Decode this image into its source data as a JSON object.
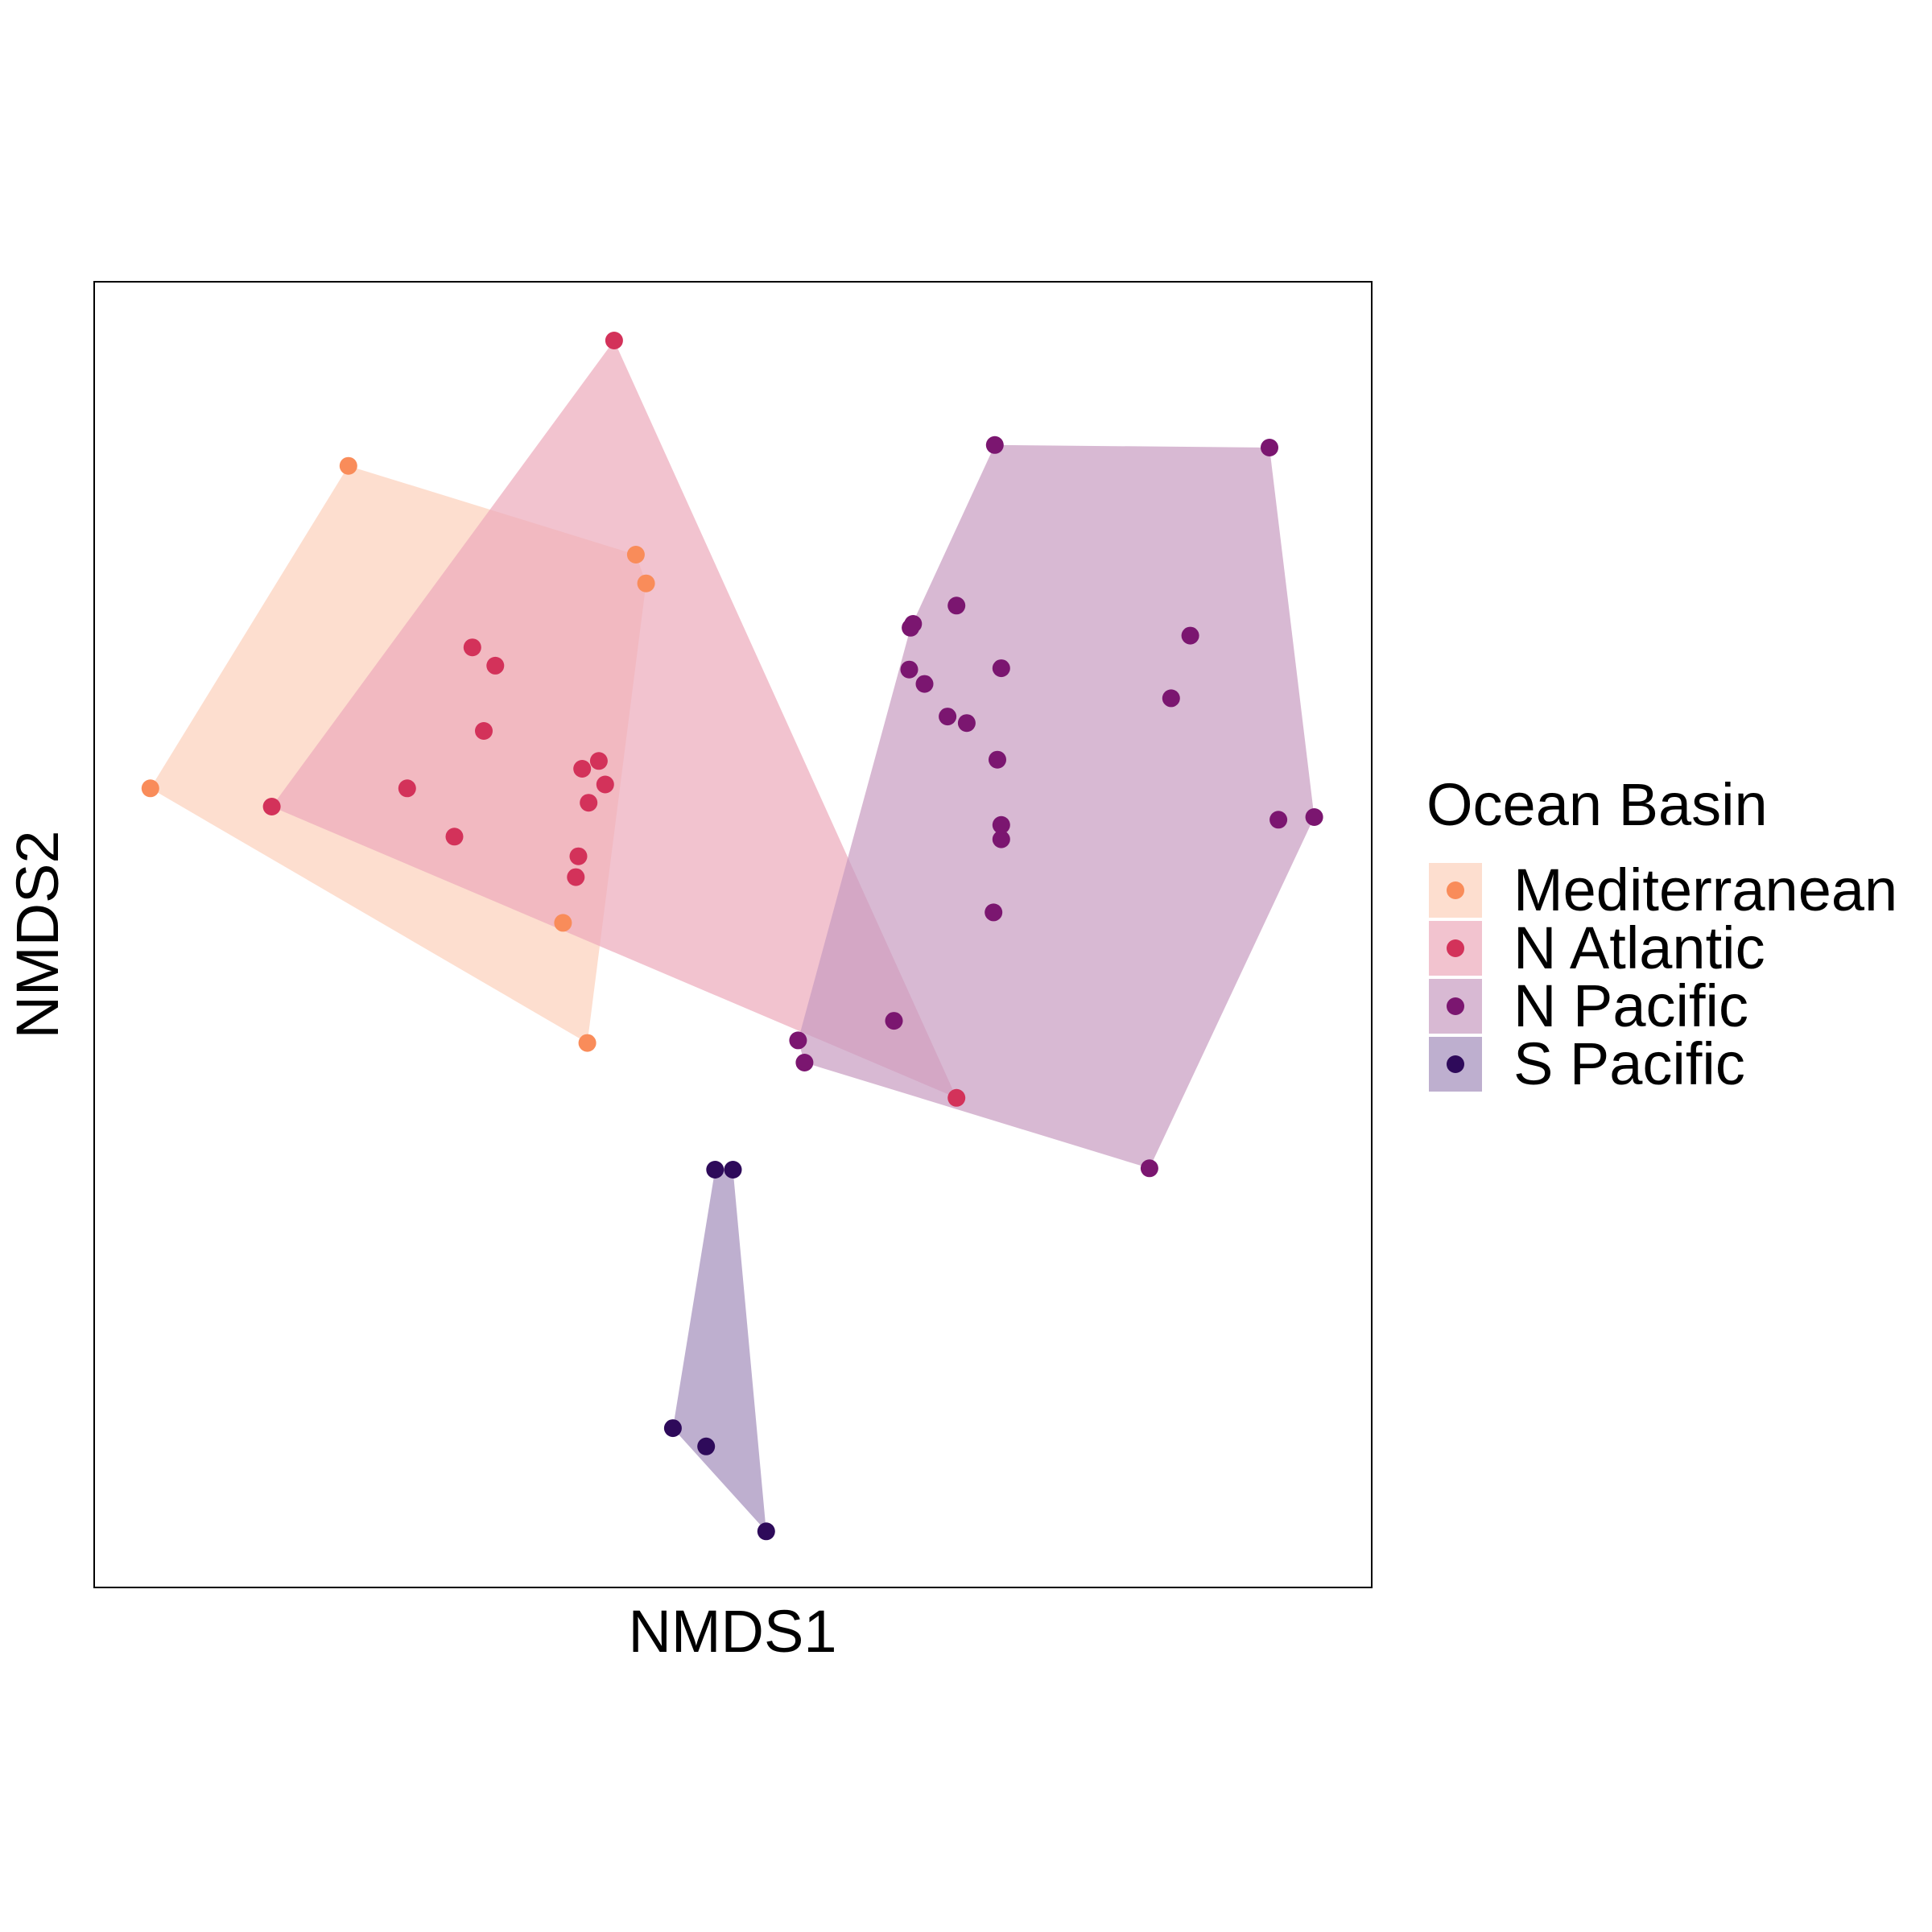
{
  "chart_data": {
    "type": "scatter",
    "xlabel": "NMDS1",
    "ylabel": "NMDS2",
    "xlim": [
      0,
      100
    ],
    "ylim": [
      0,
      100
    ],
    "grid": false,
    "hull_polygons": true,
    "legend": {
      "title": "Ocean Basin",
      "placement": "right"
    },
    "series": [
      {
        "name": "Mediterranean",
        "color": "#F98C5A",
        "hull_fill": "#FCD0BB",
        "points": [
          [
            4.4,
            61.2
          ],
          [
            19.9,
            85.9
          ],
          [
            42.4,
            79.1
          ],
          [
            43.2,
            76.9
          ],
          [
            36.7,
            50.9
          ],
          [
            38.6,
            41.7
          ]
        ]
      },
      {
        "name": "N Atlantic",
        "color": "#D3325A",
        "hull_fill": "#EDAABA",
        "points": [
          [
            40.7,
            95.5
          ],
          [
            13.9,
            59.8
          ],
          [
            24.5,
            61.2
          ],
          [
            28.2,
            57.5
          ],
          [
            29.6,
            72.0
          ],
          [
            31.4,
            70.6
          ],
          [
            30.5,
            65.6
          ],
          [
            38.2,
            62.7
          ],
          [
            39.5,
            63.3
          ],
          [
            40.0,
            61.5
          ],
          [
            38.7,
            60.1
          ],
          [
            37.9,
            56.0
          ],
          [
            37.7,
            54.4
          ],
          [
            67.5,
            37.5
          ]
        ]
      },
      {
        "name": "N Pacific",
        "color": "#7B1670",
        "hull_fill": "#C89BC1",
        "points": [
          [
            70.5,
            87.5
          ],
          [
            92.0,
            87.3
          ],
          [
            95.5,
            59.0
          ],
          [
            82.6,
            32.1
          ],
          [
            55.6,
            40.2
          ],
          [
            55.1,
            41.9
          ],
          [
            62.6,
            43.4
          ],
          [
            70.4,
            51.7
          ],
          [
            71.0,
            57.3
          ],
          [
            71.0,
            58.4
          ],
          [
            92.7,
            58.8
          ],
          [
            71.0,
            70.4
          ],
          [
            67.5,
            75.2
          ],
          [
            64.1,
            73.8
          ],
          [
            63.9,
            73.5
          ],
          [
            63.8,
            70.3
          ],
          [
            65.0,
            69.2
          ],
          [
            66.8,
            66.7
          ],
          [
            68.3,
            66.2
          ],
          [
            70.7,
            63.4
          ],
          [
            85.8,
            72.9
          ],
          [
            84.3,
            68.1
          ]
        ]
      },
      {
        "name": "S Pacific",
        "color": "#2E0A5A",
        "hull_fill": "#A28DBB",
        "points": [
          [
            48.6,
            32.0
          ],
          [
            50.0,
            32.0
          ],
          [
            45.3,
            12.2
          ],
          [
            47.9,
            10.8
          ],
          [
            52.6,
            4.3
          ]
        ]
      }
    ]
  }
}
